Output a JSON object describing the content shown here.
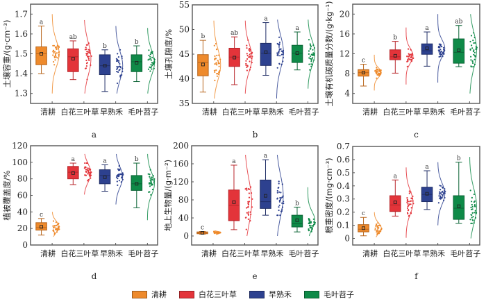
{
  "legend": {
    "items": [
      {
        "label": "清耕",
        "color": "#ee8a2c"
      },
      {
        "label": "白花三叶草",
        "color": "#e3343a"
      },
      {
        "label": "早熟禾",
        "color": "#2d418f"
      },
      {
        "label": "毛叶苕子",
        "color": "#0f8a48"
      }
    ]
  },
  "chart_data": [
    {
      "type": "box",
      "panel_label": "a",
      "ylabel": "土壤容重/(g·cm⁻³)",
      "ylim": [
        1.25,
        1.75
      ],
      "yticks": [
        1.3,
        1.4,
        1.5,
        1.6,
        1.7
      ],
      "ytick_labels": [
        "1.3",
        "1.4",
        "1.5",
        "1.6",
        "1.7"
      ],
      "categories": [
        "清耕",
        "白花三叶草",
        "早熟禾",
        "毛叶苕子"
      ],
      "series": [
        {
          "name": "清耕",
          "min": 1.4,
          "q1": 1.445,
          "median": 1.5,
          "q3": 1.535,
          "max": 1.64,
          "mean": 1.5,
          "sig": "a",
          "dist_range": [
            1.3,
            1.7
          ]
        },
        {
          "name": "白花三叶草",
          "min": 1.37,
          "q1": 1.41,
          "median": 1.485,
          "q3": 1.525,
          "max": 1.565,
          "mean": 1.475,
          "sig": "ab",
          "dist_range": [
            1.3,
            1.67
          ]
        },
        {
          "name": "早熟禾",
          "min": 1.31,
          "q1": 1.395,
          "median": 1.44,
          "q3": 1.495,
          "max": 1.52,
          "mean": 1.44,
          "sig": "b",
          "dist_range": [
            1.3,
            1.64
          ]
        },
        {
          "name": "毛叶苕子",
          "min": 1.36,
          "q1": 1.41,
          "median": 1.46,
          "q3": 1.495,
          "max": 1.54,
          "mean": 1.455,
          "sig": "b",
          "dist_range": [
            1.3,
            1.63
          ]
        }
      ]
    },
    {
      "type": "box",
      "panel_label": "b",
      "ylabel": "土壤孔隙度/%",
      "ylim": [
        35,
        55
      ],
      "yticks": [
        35,
        40,
        45,
        50,
        55
      ],
      "ytick_labels": [
        "35",
        "40",
        "45",
        "50",
        "55"
      ],
      "categories": [
        "清耕",
        "白花三叶草",
        "早熟禾",
        "毛叶苕子"
      ],
      "series": [
        {
          "name": "清耕",
          "min": 37.3,
          "q1": 40.6,
          "median": 43.3,
          "q3": 44.9,
          "max": 47.8,
          "mean": 42.9,
          "sig": "b",
          "dist_range": [
            36.0,
            51.8
          ]
        },
        {
          "name": "白花三叶草",
          "min": 38.8,
          "q1": 42.5,
          "median": 44.4,
          "q3": 46.2,
          "max": 48.5,
          "mean": 44.3,
          "sig": "ab",
          "dist_range": [
            37.0,
            51.8
          ]
        },
        {
          "name": "早熟禾",
          "min": 40.7,
          "q1": 42.7,
          "median": 45.2,
          "q3": 47.2,
          "max": 51.4,
          "mean": 45.4,
          "sig": "a",
          "dist_range": [
            36.0,
            52.0
          ]
        },
        {
          "name": "毛叶苕子",
          "min": 41.8,
          "q1": 43.3,
          "median": 45.2,
          "q3": 46.8,
          "max": 49.5,
          "mean": 45.2,
          "sig": "a",
          "dist_range": [
            38.0,
            52.0
          ]
        }
      ]
    },
    {
      "type": "box",
      "panel_label": "c",
      "ylabel": "土壤有机碳质量分数/(g·kg⁻¹)",
      "ylim": [
        2,
        22
      ],
      "yticks": [
        4,
        8,
        12,
        16,
        20
      ],
      "ytick_labels": [
        "4",
        "8",
        "12",
        "16",
        "20"
      ],
      "categories": [
        "清耕",
        "白花三叶草",
        "早熟禾",
        "毛叶苕子"
      ],
      "series": [
        {
          "name": "清耕",
          "min": 5.5,
          "q1": 7.5,
          "median": 8.2,
          "q3": 8.8,
          "max": 9.9,
          "mean": 8.2,
          "sig": "c",
          "dist_range": [
            4.6,
            11.8
          ]
        },
        {
          "name": "白花三叶草",
          "min": 8.1,
          "q1": 10.8,
          "median": 11.4,
          "q3": 12.8,
          "max": 14.5,
          "mean": 11.6,
          "sig": "b",
          "dist_range": [
            5.8,
            17.3
          ]
        },
        {
          "name": "早熟禾",
          "min": 9.5,
          "q1": 11.9,
          "median": 12.6,
          "q3": 14.0,
          "max": 16.4,
          "mean": 13.1,
          "sig": "a",
          "dist_range": [
            6.2,
            20.0
          ]
        },
        {
          "name": "毛叶苕子",
          "min": 9.4,
          "q1": 10.1,
          "median": 12.3,
          "q3": 15.0,
          "max": 17.7,
          "mean": 12.7,
          "sig": "ab",
          "dist_range": [
            4.0,
            20.0
          ]
        }
      ]
    },
    {
      "type": "box",
      "panel_label": "d",
      "ylabel": "植被覆盖度/%",
      "ylim": [
        0,
        120
      ],
      "yticks": [
        0,
        20,
        40,
        60,
        80,
        100,
        120
      ],
      "ytick_labels": [
        "0",
        "20",
        "40",
        "60",
        "80",
        "100",
        "120"
      ],
      "categories": [
        "清耕",
        "白花三叶草",
        "早熟禾",
        "毛叶苕子"
      ],
      "series": [
        {
          "name": "清耕",
          "min": 12,
          "q1": 18,
          "median": 21,
          "q3": 27,
          "max": 32,
          "mean": 22,
          "sig": "c",
          "dist_range": [
            10,
            40
          ]
        },
        {
          "name": "白花三叶草",
          "min": 73,
          "q1": 80,
          "median": 88,
          "q3": 95,
          "max": 99,
          "mean": 87,
          "sig": "a",
          "dist_range": [
            61,
            110
          ]
        },
        {
          "name": "早熟禾",
          "min": 65,
          "q1": 74,
          "median": 84,
          "q3": 91,
          "max": 97,
          "mean": 82,
          "sig": "a",
          "dist_range": [
            49,
            110
          ]
        },
        {
          "name": "毛叶苕子",
          "min": 45,
          "q1": 66,
          "median": 74,
          "q3": 84,
          "max": 99,
          "mean": 74,
          "sig": "b",
          "dist_range": [
            30,
            110
          ]
        }
      ]
    },
    {
      "type": "box",
      "panel_label": "e",
      "ylabel": "地上生物量/(g·m⁻²)",
      "ylim": [
        -20,
        200
      ],
      "yticks": [
        0,
        40,
        80,
        120,
        160,
        200
      ],
      "ytick_labels": [
        "0",
        "40",
        "80",
        "120",
        "160",
        "200"
      ],
      "categories": [
        "清耕",
        "白花三叶草",
        "早熟禾",
        "毛叶苕子"
      ],
      "series": [
        {
          "name": "清耕",
          "min": 4,
          "q1": 5,
          "median": 7,
          "q3": 9,
          "max": 10,
          "mean": 7,
          "sig": "c",
          "dist_range": [
            3,
            12
          ]
        },
        {
          "name": "白花三叶草",
          "min": 14,
          "q1": 34,
          "median": 68,
          "q3": 102,
          "max": 157,
          "mean": 75,
          "sig": "a",
          "dist_range": [
            0,
            180
          ]
        },
        {
          "name": "早熟禾",
          "min": 46,
          "q1": 61,
          "median": 76,
          "q3": 124,
          "max": 169,
          "mean": 89,
          "sig": "a",
          "dist_range": [
            0,
            180
          ]
        },
        {
          "name": "毛叶苕子",
          "min": 9,
          "q1": 20,
          "median": 27,
          "q3": 46,
          "max": 64,
          "mean": 35,
          "sig": "b",
          "dist_range": [
            0,
            108
          ]
        }
      ]
    },
    {
      "type": "box",
      "panel_label": "f",
      "ylabel": "根重密度/(mg·cm⁻³)",
      "ylim": [
        -0.05,
        0.7
      ],
      "yticks": [
        0,
        0.1,
        0.2,
        0.3,
        0.4,
        0.5,
        0.6,
        0.7
      ],
      "ytick_labels": [
        "0",
        "0.1",
        "0.2",
        "0.3",
        "0.4",
        "0.5",
        "0.6",
        "0.7"
      ],
      "categories": [
        "清耕",
        "白花三叶草",
        "早熟禾",
        "毛叶苕子"
      ],
      "series": [
        {
          "name": "清耕",
          "min": 0.02,
          "q1": 0.05,
          "median": 0.07,
          "q3": 0.105,
          "max": 0.16,
          "mean": 0.078,
          "sig": "c",
          "dist_range": [
            0.01,
            0.2
          ]
        },
        {
          "name": "白花三叶草",
          "min": 0.17,
          "q1": 0.205,
          "median": 0.255,
          "q3": 0.325,
          "max": 0.445,
          "mean": 0.275,
          "sig": "a",
          "dist_range": [
            0.005,
            0.54
          ]
        },
        {
          "name": "早熟禾",
          "min": 0.22,
          "q1": 0.28,
          "median": 0.335,
          "q3": 0.39,
          "max": 0.515,
          "mean": 0.34,
          "sig": "a",
          "dist_range": [
            0.1,
            0.58
          ]
        },
        {
          "name": "毛叶苕子",
          "min": 0.115,
          "q1": 0.145,
          "median": 0.23,
          "q3": 0.325,
          "max": 0.58,
          "mean": 0.245,
          "sig": "b",
          "dist_range": [
            0.0,
            0.62
          ]
        }
      ]
    }
  ]
}
